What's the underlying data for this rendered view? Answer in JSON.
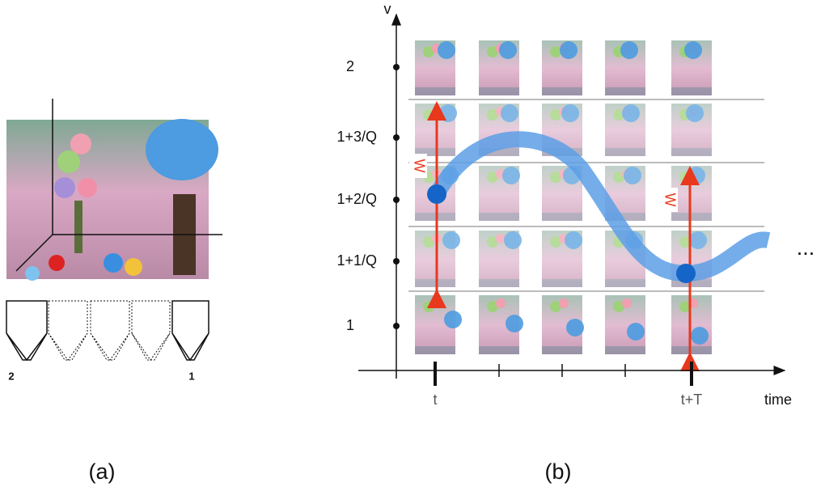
{
  "panel_a": {
    "camera_labels": [
      "2",
      "1"
    ],
    "caption": "(a)"
  },
  "panel_b": {
    "y_axis_label": "v",
    "y_labels": [
      "2",
      "1+3/Q",
      "1+2/Q",
      "1+1/Q",
      "1"
    ],
    "x_labels": [
      "t",
      "t+T"
    ],
    "x_axis_label": "time",
    "window_labels": [
      "W",
      "W"
    ],
    "continuation": "...",
    "caption": "(b)"
  }
}
